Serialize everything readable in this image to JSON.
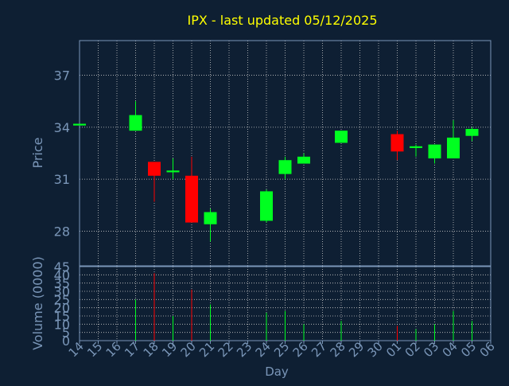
{
  "chart_data": {
    "type": "candlestick",
    "title": "IPX - last updated 05/12/2025",
    "xlabel": "Day",
    "ylabel_price": "Price",
    "ylabel_volume": "Volume (0000)",
    "price_ylim": [
      26,
      39
    ],
    "price_ticks": [
      28,
      31,
      34,
      37
    ],
    "volume_ylim": [
      0,
      45
    ],
    "volume_ticks": [
      0,
      5,
      10,
      15,
      20,
      25,
      30,
      35,
      40,
      45
    ],
    "x_ticks": [
      "14",
      "15",
      "16",
      "17",
      "18",
      "19",
      "20",
      "21",
      "22",
      "23",
      "24",
      "25",
      "26",
      "27",
      "28",
      "29",
      "30",
      "01",
      "02",
      "03",
      "04",
      "05",
      "06"
    ],
    "grid": true,
    "colors": {
      "up": "#00ff20",
      "down": "#ff0000",
      "title": "#ffff00",
      "axis_text": "#7a96b8",
      "grid": "#c8c8c8",
      "background": "#0e1f33"
    },
    "candles": [
      {
        "day": "14",
        "open": 34.1,
        "high": 34.2,
        "low": 34.1,
        "close": 34.2,
        "volume": 0
      },
      {
        "day": "17",
        "open": 33.8,
        "high": 35.5,
        "low": 33.8,
        "close": 34.7,
        "volume": 25
      },
      {
        "day": "18",
        "open": 32.0,
        "high": 32.0,
        "low": 29.7,
        "close": 31.2,
        "volume": 41
      },
      {
        "day": "19",
        "open": 31.4,
        "high": 32.2,
        "low": 31.0,
        "close": 31.5,
        "volume": 15
      },
      {
        "day": "20",
        "open": 31.2,
        "high": 32.3,
        "low": 28.5,
        "close": 28.5,
        "volume": 31
      },
      {
        "day": "21",
        "open": 28.4,
        "high": 29.3,
        "low": 27.4,
        "close": 29.1,
        "volume": 22
      },
      {
        "day": "24",
        "open": 28.6,
        "high": 30.4,
        "low": 28.5,
        "close": 30.3,
        "volume": 17
      },
      {
        "day": "25",
        "open": 31.3,
        "high": 32.3,
        "low": 31.0,
        "close": 32.1,
        "volume": 18
      },
      {
        "day": "26",
        "open": 31.9,
        "high": 32.5,
        "low": 31.9,
        "close": 32.3,
        "volume": 10
      },
      {
        "day": "28",
        "open": 33.1,
        "high": 33.8,
        "low": 33.1,
        "close": 33.8,
        "volume": 12
      },
      {
        "day": "01",
        "open": 33.6,
        "high": 33.8,
        "low": 32.1,
        "close": 32.6,
        "volume": 9
      },
      {
        "day": "02",
        "open": 32.8,
        "high": 33.0,
        "low": 32.3,
        "close": 32.9,
        "volume": 7
      },
      {
        "day": "03",
        "open": 32.2,
        "high": 33.0,
        "low": 31.9,
        "close": 33.0,
        "volume": 10
      },
      {
        "day": "04",
        "open": 32.2,
        "high": 34.4,
        "low": 32.2,
        "close": 33.4,
        "volume": 18
      },
      {
        "day": "05",
        "open": 33.5,
        "high": 34.0,
        "low": 33.2,
        "close": 33.9,
        "volume": 12
      }
    ]
  }
}
